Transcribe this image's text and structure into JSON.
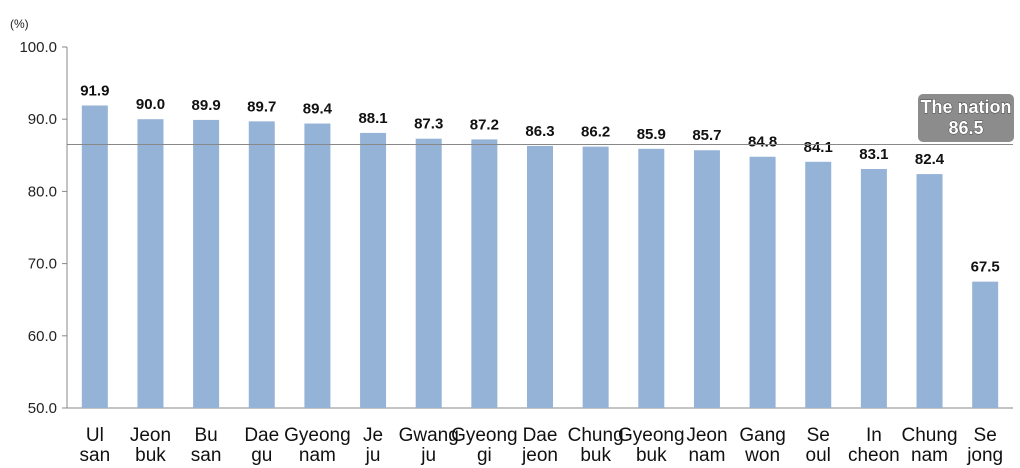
{
  "chart_data": {
    "type": "bar",
    "unit_label": "(%)",
    "ylim": [
      50,
      100
    ],
    "yticks": [
      "50.0",
      "60.0",
      "70.0",
      "80.0",
      "90.0",
      "100.0"
    ],
    "categories": [
      [
        "Ul",
        "san"
      ],
      [
        "Jeon",
        "buk"
      ],
      [
        "Bu",
        "san"
      ],
      [
        "Dae",
        "gu"
      ],
      [
        "Gyeong",
        "nam"
      ],
      [
        "Je",
        "ju"
      ],
      [
        "Gwang",
        "ju"
      ],
      [
        "Gyeong",
        "gi"
      ],
      [
        "Dae",
        "jeon"
      ],
      [
        "Chung",
        "buk"
      ],
      [
        "Gyeong",
        "buk"
      ],
      [
        "Jeon",
        "nam"
      ],
      [
        "Gang",
        "won"
      ],
      [
        "Se",
        "oul"
      ],
      [
        "In",
        "cheon"
      ],
      [
        "Chung",
        "nam"
      ],
      [
        "Se",
        "jong"
      ]
    ],
    "values": [
      91.9,
      90.0,
      89.9,
      89.7,
      89.4,
      88.1,
      87.3,
      87.2,
      86.3,
      86.2,
      85.9,
      85.7,
      84.8,
      84.1,
      83.1,
      82.4,
      67.5
    ],
    "value_labels": [
      "91.9",
      "90.0",
      "89.9",
      "89.7",
      "89.4",
      "88.1",
      "87.3",
      "87.2",
      "86.3",
      "86.2",
      "85.9",
      "85.7",
      "84.8",
      "84.1",
      "83.1",
      "82.4",
      "67.5"
    ],
    "reference": {
      "label_line1": "The nation",
      "label_line2": "86.5",
      "value": 86.5
    },
    "grid": false,
    "colors": {
      "bar": "#95b3d7",
      "axis": "#888888",
      "reference_line": "#888888",
      "badge": "#8c8c8c"
    }
  }
}
